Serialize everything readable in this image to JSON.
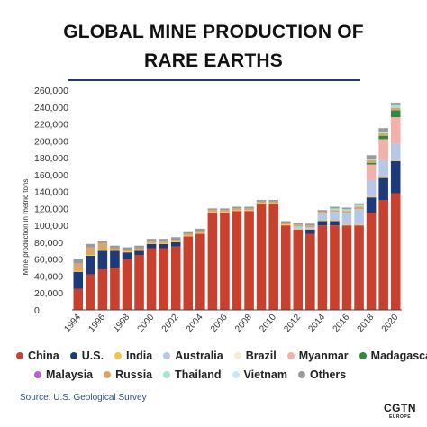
{
  "header": {
    "title_line1": "GLOBAL MINE PRODUCTION OF",
    "title_line2": "RARE EARTHS"
  },
  "source": "Source: U.S. Geological Survey",
  "logo": {
    "main": "CGTN",
    "sub": "EUROPE"
  },
  "colors": {
    "China": "#c8412f",
    "U.S.": "#1e3a7a",
    "India": "#f3c64a",
    "Australia": "#b9c7e6",
    "Brazil": "#f6ecd2",
    "Myanmar": "#f2b2ab",
    "Madagascar": "#2e8b3e",
    "Malaysia": "#b562d6",
    "Russia": "#d9a66a",
    "Thailand": "#a6e2d6",
    "Vietnam": "#c9e6f7",
    "Others": "#9a9a9a",
    "rule": "#1f3a6e",
    "axis_text": "#333333"
  },
  "chart_data": {
    "type": "bar",
    "stacked": true,
    "ylabel": "Mine production in metric tons",
    "ylim": [
      0,
      260000
    ],
    "yticks": [
      0,
      20000,
      40000,
      60000,
      80000,
      100000,
      120000,
      140000,
      160000,
      180000,
      200000,
      220000,
      240000,
      260000
    ],
    "ytick_labels": [
      "0",
      "20,000",
      "40,000",
      "60,000",
      "80,000",
      "100,000",
      "120,000",
      "140,000",
      "160,000",
      "180,000",
      "200,000",
      "220,000",
      "240,000",
      "260,000"
    ],
    "grid": false,
    "legend": "bottom",
    "categories": [
      "1994",
      "1995",
      "1996",
      "1997",
      "1998",
      "1999",
      "2000",
      "2001",
      "2002",
      "2003",
      "2004",
      "2005",
      "2006",
      "2007",
      "2008",
      "2009",
      "2010",
      "2011",
      "2012",
      "2013",
      "2014",
      "2015",
      "2016",
      "2017",
      "2018",
      "2019",
      "2020"
    ],
    "xtick_labels": [
      "1994",
      "",
      "1996",
      "",
      "1998",
      "",
      "2000",
      "",
      "2002",
      "",
      "2004",
      "",
      "2006",
      "",
      "2008",
      "",
      "2010",
      "",
      "2012",
      "",
      "2014",
      "",
      "2016",
      "",
      "2018",
      "",
      "2020"
    ],
    "series": [
      {
        "name": "China",
        "values": [
          25000,
          42000,
          48000,
          50000,
          60000,
          65000,
          73000,
          73000,
          75000,
          87000,
          90000,
          115000,
          115000,
          117000,
          117000,
          125000,
          125000,
          100000,
          95000,
          90000,
          100000,
          100000,
          100000,
          100000,
          115000,
          130000,
          138000
        ]
      },
      {
        "name": "U.S.",
        "values": [
          20000,
          22000,
          22000,
          20000,
          8000,
          5000,
          5000,
          5000,
          5000,
          0,
          0,
          0,
          0,
          0,
          0,
          0,
          0,
          0,
          0,
          5000,
          5000,
          5000,
          0,
          0,
          18000,
          26000,
          38000
        ]
      },
      {
        "name": "India",
        "values": [
          1000,
          1000,
          1000,
          1000,
          1000,
          1000,
          1000,
          1000,
          1000,
          1000,
          1000,
          1000,
          1000,
          1000,
          1000,
          1000,
          1000,
          1000,
          1000,
          1000,
          1000,
          1000,
          1000,
          1000,
          1000,
          1000,
          1000
        ]
      },
      {
        "name": "Australia",
        "values": [
          0,
          0,
          0,
          0,
          0,
          0,
          0,
          0,
          0,
          0,
          0,
          0,
          0,
          0,
          0,
          0,
          0,
          0,
          3000,
          2000,
          8000,
          10000,
          14000,
          18000,
          20000,
          20000,
          20000
        ]
      },
      {
        "name": "Brazil",
        "values": [
          0,
          0,
          0,
          0,
          0,
          0,
          0,
          0,
          0,
          0,
          0,
          0,
          0,
          0,
          0,
          0,
          0,
          0,
          0,
          0,
          0,
          0,
          0,
          0,
          0,
          0,
          0
        ]
      },
      {
        "name": "Myanmar",
        "values": [
          0,
          0,
          0,
          0,
          0,
          0,
          0,
          0,
          0,
          0,
          0,
          0,
          0,
          0,
          0,
          0,
          0,
          0,
          0,
          0,
          0,
          0,
          0,
          0,
          18000,
          25000,
          31000
        ]
      },
      {
        "name": "Madagascar",
        "values": [
          0,
          0,
          0,
          0,
          0,
          0,
          0,
          0,
          0,
          0,
          0,
          0,
          0,
          0,
          0,
          0,
          0,
          0,
          0,
          0,
          0,
          0,
          0,
          0,
          2000,
          4000,
          8000
        ]
      },
      {
        "name": "Malaysia",
        "values": [
          0,
          0,
          0,
          0,
          0,
          0,
          0,
          0,
          0,
          0,
          0,
          0,
          0,
          0,
          0,
          0,
          0,
          0,
          0,
          0,
          0,
          0,
          0,
          0,
          0,
          0,
          0
        ]
      },
      {
        "name": "Russia",
        "values": [
          9000,
          9000,
          8000,
          2000,
          2000,
          2000,
          2000,
          2000,
          2000,
          2000,
          2000,
          2000,
          2000,
          2000,
          2000,
          2000,
          2000,
          2000,
          2000,
          2000,
          2000,
          2000,
          2000,
          3000,
          3000,
          3000,
          3000
        ]
      },
      {
        "name": "Thailand",
        "values": [
          0,
          0,
          0,
          0,
          0,
          0,
          0,
          0,
          0,
          0,
          0,
          0,
          0,
          0,
          0,
          0,
          0,
          0,
          0,
          0,
          0,
          2000,
          2000,
          2000,
          1000,
          2000,
          3000
        ]
      },
      {
        "name": "Vietnam",
        "values": [
          0,
          0,
          0,
          0,
          0,
          0,
          0,
          0,
          0,
          0,
          0,
          0,
          0,
          0,
          0,
          0,
          0,
          0,
          0,
          0,
          0,
          0,
          0,
          0,
          0,
          0,
          0
        ]
      },
      {
        "name": "Others",
        "values": [
          5000,
          4000,
          3000,
          3000,
          3000,
          3000,
          3000,
          3000,
          3000,
          3000,
          3000,
          2000,
          2000,
          2000,
          2000,
          2000,
          2000,
          2000,
          2000,
          2000,
          2000,
          2000,
          2000,
          2000,
          5000,
          4000,
          3000
        ]
      }
    ]
  },
  "legend_items": [
    {
      "label": "China"
    },
    {
      "label": "U.S."
    },
    {
      "label": "India"
    },
    {
      "label": "Australia"
    },
    {
      "label": "Brazil"
    },
    {
      "label": "Myanmar"
    },
    {
      "label": "Madagascar"
    },
    {
      "label": "Malaysia"
    },
    {
      "label": "Russia"
    },
    {
      "label": "Thailand"
    },
    {
      "label": "Vietnam"
    },
    {
      "label": "Others"
    }
  ]
}
